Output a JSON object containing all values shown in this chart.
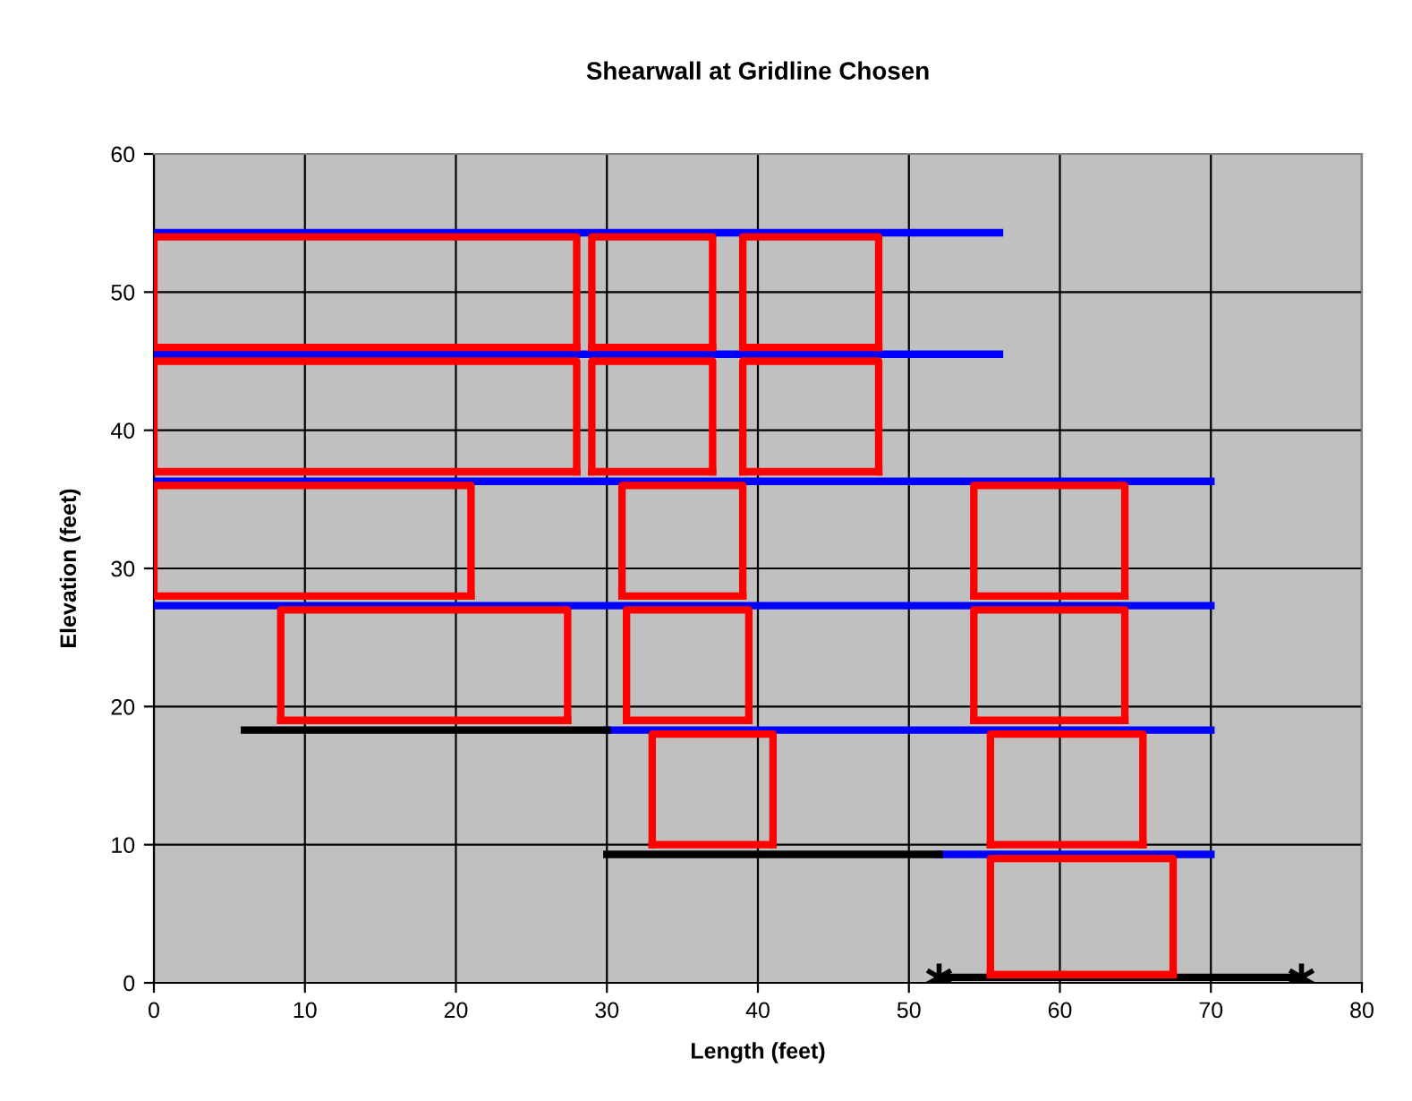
{
  "chart_data": {
    "type": "line",
    "title": "Shearwall at Gridline Chosen",
    "xlabel": "Length (feet)",
    "ylabel": "Elevation (feet)",
    "xlim": [
      0,
      80
    ],
    "ylim": [
      0,
      60
    ],
    "xticks": [
      0,
      10,
      20,
      30,
      40,
      50,
      60,
      70,
      80
    ],
    "yticks": [
      0,
      10,
      20,
      30,
      40,
      50,
      60
    ],
    "grid": true,
    "legend": false,
    "marker": "none",
    "line_style": "solid",
    "series": [
      {
        "color": "#0000ff",
        "x": [
          0,
          56
        ],
        "values": [
          54.3,
          54.3
        ]
      },
      {
        "color": "#0000ff",
        "x": [
          0,
          56
        ],
        "values": [
          45.5,
          45.5
        ]
      },
      {
        "color": "#0000ff",
        "x": [
          0,
          70
        ],
        "values": [
          36.3,
          36.3
        ]
      },
      {
        "color": "#0000ff",
        "x": [
          0,
          70
        ],
        "values": [
          27.3,
          27.3
        ]
      },
      {
        "color": "#0000ff",
        "x": [
          30,
          70
        ],
        "values": [
          18.3,
          18.3
        ]
      },
      {
        "color": "#0000ff",
        "x": [
          52,
          70
        ],
        "values": [
          9.3,
          9.3
        ]
      },
      {
        "color": "#000000",
        "x": [
          6,
          30
        ],
        "values": [
          18.3,
          18.3
        ]
      },
      {
        "color": "#000000",
        "x": [
          30,
          52
        ],
        "values": [
          9.3,
          9.3
        ]
      },
      {
        "color": "#000000",
        "x": [
          52,
          76
        ],
        "values": [
          0.4,
          0.4
        ],
        "marker": "cross"
      },
      {
        "color": "#ff0000",
        "x": [
          0,
          0,
          28,
          28
        ],
        "values": [
          46,
          54,
          54,
          46
        ]
      },
      {
        "color": "#ff0000",
        "x": [
          0,
          28
        ],
        "values": [
          46,
          46
        ]
      },
      {
        "color": "#ff0000",
        "x": [
          29,
          29,
          37,
          37
        ],
        "values": [
          46,
          54,
          54,
          46
        ]
      },
      {
        "color": "#ff0000",
        "x": [
          29,
          37
        ],
        "values": [
          46,
          46
        ]
      },
      {
        "color": "#ff0000",
        "x": [
          39,
          39,
          48,
          48
        ],
        "values": [
          46,
          54,
          54,
          46
        ]
      },
      {
        "color": "#ff0000",
        "x": [
          39,
          48
        ],
        "values": [
          46,
          46
        ]
      },
      {
        "color": "#ff0000",
        "x": [
          0,
          0,
          28,
          28
        ],
        "values": [
          37,
          45,
          45,
          37
        ]
      },
      {
        "color": "#ff0000",
        "x": [
          0,
          28
        ],
        "values": [
          37,
          37
        ]
      },
      {
        "color": "#ff0000",
        "x": [
          29,
          29,
          37,
          37
        ],
        "values": [
          37,
          45,
          45,
          37
        ]
      },
      {
        "color": "#ff0000",
        "x": [
          29,
          37
        ],
        "values": [
          37,
          37
        ]
      },
      {
        "color": "#ff0000",
        "x": [
          39,
          39,
          48,
          48
        ],
        "values": [
          37,
          45,
          45,
          37
        ]
      },
      {
        "color": "#ff0000",
        "x": [
          39,
          48
        ],
        "values": [
          37,
          37
        ]
      },
      {
        "color": "#ff0000",
        "x": [
          0,
          0,
          21,
          21
        ],
        "values": [
          28,
          36,
          36,
          28
        ]
      },
      {
        "color": "#ff0000",
        "x": [
          0,
          21
        ],
        "values": [
          28,
          28
        ]
      },
      {
        "color": "#ff0000",
        "x": [
          31,
          31,
          39,
          39
        ],
        "values": [
          28,
          36,
          36,
          28
        ]
      },
      {
        "color": "#ff0000",
        "x": [
          31,
          39
        ],
        "values": [
          28,
          28
        ]
      },
      {
        "color": "#ff0000",
        "x": [
          54.3,
          54.3,
          64.3,
          64.3
        ],
        "values": [
          28,
          36,
          36,
          28
        ]
      },
      {
        "color": "#ff0000",
        "x": [
          54.3,
          64.3
        ],
        "values": [
          28,
          28
        ]
      },
      {
        "color": "#ff0000",
        "x": [
          8.4,
          8.4,
          27.4,
          27.4
        ],
        "values": [
          19,
          27,
          27,
          19
        ]
      },
      {
        "color": "#ff0000",
        "x": [
          8.4,
          27.4
        ],
        "values": [
          19,
          19
        ]
      },
      {
        "color": "#ff0000",
        "x": [
          31.3,
          31.3,
          39.4,
          39.4
        ],
        "values": [
          19,
          27,
          27,
          19
        ]
      },
      {
        "color": "#ff0000",
        "x": [
          31.3,
          39.4
        ],
        "values": [
          19,
          19
        ]
      },
      {
        "color": "#ff0000",
        "x": [
          54.3,
          54.3,
          64.3,
          64.3
        ],
        "values": [
          19,
          27,
          27,
          19
        ]
      },
      {
        "color": "#ff0000",
        "x": [
          54.3,
          64.3
        ],
        "values": [
          19,
          19
        ]
      },
      {
        "color": "#ff0000",
        "x": [
          33,
          33,
          41,
          41
        ],
        "values": [
          10,
          18,
          18,
          10
        ]
      },
      {
        "color": "#ff0000",
        "x": [
          33,
          41
        ],
        "values": [
          10,
          10
        ]
      },
      {
        "color": "#ff0000",
        "x": [
          55.4,
          55.4,
          65.5,
          65.5
        ],
        "values": [
          10,
          18,
          18,
          10
        ]
      },
      {
        "color": "#ff0000",
        "x": [
          55.4,
          65.5
        ],
        "values": [
          10,
          10
        ]
      },
      {
        "color": "#ff0000",
        "x": [
          55.4,
          55.4,
          67.5,
          67.5
        ],
        "values": [
          0.6,
          9,
          9,
          0.6
        ]
      },
      {
        "color": "#ff0000",
        "x": [
          55.4,
          67.5
        ],
        "values": [
          0.6,
          0.6
        ]
      }
    ]
  }
}
